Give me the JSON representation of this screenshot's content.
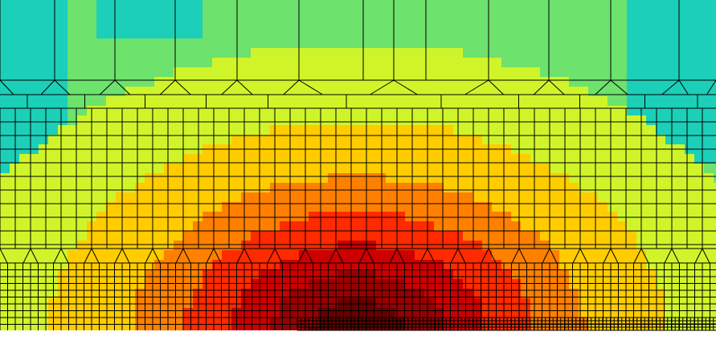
{
  "colors": {
    "background": "#ffffff",
    "mesh_line": "#000000",
    "contour_levels": [
      "#1ccfb8",
      "#6de26d",
      "#cff52a",
      "#ffcc00",
      "#ff8000",
      "#ff2a00",
      "#cc0000",
      "#990000",
      "#660000"
    ]
  }
}
